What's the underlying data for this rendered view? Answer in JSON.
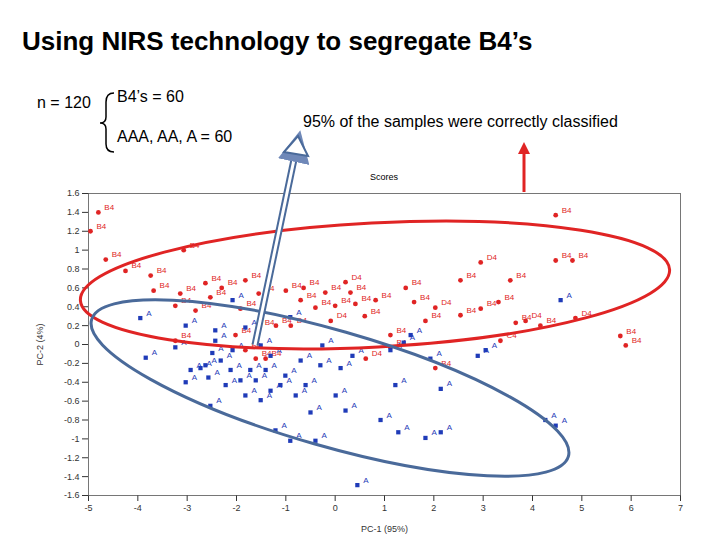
{
  "title": "Using NIRS technology to segregate B4’s",
  "annotations": {
    "n": "n = 120",
    "groups": [
      "B4’s = 60",
      "AAA, AA, A = 60"
    ],
    "result": "95% of the samples were correctly classified"
  },
  "chart_data": {
    "type": "scatter",
    "title": "Scores",
    "x_label": "PC-1 (95%)",
    "y_label": "PC-2 (4%)",
    "xlim": [
      -5,
      7
    ],
    "ylim": [
      -1.6,
      1.6
    ],
    "xticks": [
      -5,
      -4,
      -3,
      -2,
      -1,
      0,
      1,
      2,
      3,
      4,
      5,
      6,
      7
    ],
    "yticks": [
      -1.6,
      -1.4,
      -1.2,
      -1,
      -0.8,
      -0.6,
      -0.4,
      -0.2,
      0,
      0.2,
      0.4,
      0.6,
      0.8,
      1,
      1.2,
      1.4,
      1.6
    ],
    "grid": false,
    "series": [
      {
        "color": "#e02424",
        "marker": "circle",
        "x": [
          -4.8,
          -4.96,
          -4.65,
          -3.07,
          -4.25,
          -3.74,
          -3.68,
          -3.24,
          -2.83,
          -2.63,
          -2.53,
          -1.82,
          -1.92,
          -1.55,
          -1.0,
          -0.64,
          -0.7,
          -0.4,
          -1.2,
          -1.55,
          0.21,
          0.31,
          0.41,
          0.0,
          -0.09,
          0.82,
          1.43,
          1.83,
          1.12,
          2.03,
          2.54,
          2.95,
          2.54,
          2.95,
          3.31,
          3.55,
          3.66,
          3.86,
          4.16,
          3.35,
          4.47,
          4.47,
          4.81,
          4.87,
          5.78,
          5.89,
          0.62,
          2.03,
          -1.41,
          -1.61,
          -3.24,
          -2.02,
          1.12,
          -1.82,
          -3.14,
          -0.9,
          0.6,
          1.6,
          -2.3,
          -0.2
        ],
        "y": [
          1.4,
          1.2,
          0.9,
          1.0,
          0.78,
          0.73,
          0.57,
          0.41,
          0.36,
          0.65,
          0.5,
          0.68,
          0.38,
          0.54,
          0.57,
          0.6,
          0.47,
          0.39,
          0.2,
          0.18,
          0.66,
          0.55,
          0.43,
          0.41,
          0.25,
          0.47,
          0.6,
          0.25,
          0.1,
          0.39,
          0.68,
          0.87,
          0.31,
          0.38,
          0.45,
          0.68,
          0.23,
          0.25,
          0.2,
          0.04,
          1.37,
          0.89,
          0.89,
          0.28,
          0.09,
          -0.01,
          -0.15,
          -0.25,
          -0.15,
          -0.15,
          0.04,
          0.1,
          -0.03,
          -0.06,
          0.54,
          0.2,
          0.3,
          0.45,
          0.6,
          0.55
        ],
        "labels": [
          "B4",
          "B4",
          "B4",
          "B4",
          "B4",
          "B4",
          "B4",
          "B4",
          "B4",
          "B4",
          "B4",
          "B4",
          "B4",
          "B4",
          "B4",
          "B4",
          "B4",
          "B4",
          "B4",
          "B4",
          "D4",
          "B4",
          "B4",
          "B4",
          "D4",
          "B4",
          "B4",
          "B4",
          "B4",
          "D4",
          "B4",
          "D4",
          "B4",
          "B4",
          "B4",
          "B4",
          "B4",
          "D4",
          "B4",
          "C4",
          "B4",
          "B4",
          "B4",
          "D4",
          "B4",
          "B4",
          "D4",
          "B4",
          "B4",
          "B4",
          "B4",
          "B4",
          "B4",
          "B4",
          "B4",
          "D4",
          "B4",
          "B4",
          "B4",
          "B4"
        ]
      },
      {
        "color": "#1f3bb8",
        "marker": "square",
        "x": [
          -3.95,
          -3.84,
          -3.24,
          -2.93,
          -2.73,
          -2.57,
          -2.53,
          -3.03,
          -2.49,
          -2.43,
          -2.32,
          -2.22,
          -2.12,
          -2.08,
          -1.92,
          -1.82,
          -1.72,
          -1.61,
          -1.51,
          -1.41,
          -1.31,
          -1.21,
          -1.11,
          -1.01,
          -0.91,
          -0.8,
          -0.7,
          -0.6,
          -0.5,
          -0.4,
          -0.3,
          -0.26,
          0.01,
          0.11,
          0.21,
          0.35,
          0.45,
          0.92,
          1.12,
          1.28,
          1.39,
          1.83,
          1.93,
          2.14,
          2.89,
          3.05,
          4.57,
          4.26,
          4.47,
          -2.43,
          -2.08,
          -1.82,
          -1.51,
          -1.31,
          -3.03,
          -0.91,
          1.53,
          -2.63,
          1.22,
          2.14
        ],
        "y": [
          0.28,
          -0.14,
          -0.03,
          -0.27,
          -0.25,
          -0.35,
          -0.65,
          -0.4,
          -0.09,
          0.04,
          -0.17,
          -0.43,
          -0.27,
          -0.06,
          -0.38,
          -0.54,
          -0.27,
          -0.38,
          -0.59,
          -0.27,
          -0.49,
          -0.91,
          -0.43,
          -0.33,
          -1.02,
          -0.54,
          -0.17,
          -0.43,
          -0.72,
          -1.02,
          -0.22,
          -0.01,
          -0.54,
          -0.25,
          -0.7,
          -0.12,
          -1.49,
          -0.8,
          -0.06,
          -0.93,
          0.02,
          -0.99,
          -0.15,
          -0.93,
          -0.12,
          -0.06,
          0.47,
          -0.8,
          -0.86,
          0.15,
          0.47,
          0.18,
          -0.01,
          -0.12,
          0.2,
          0.29,
          0.1,
          -0.22,
          -0.43,
          -0.47
        ],
        "labels": [
          "A",
          "A",
          "A",
          "A",
          "A",
          "A",
          "A",
          "A",
          "A",
          "A",
          "A",
          "A",
          "A",
          "A",
          "A",
          "A",
          "A",
          "A",
          "A",
          "A",
          "A",
          "A",
          "A",
          "A",
          "A",
          "A",
          "A",
          "A",
          "A",
          "A",
          "A",
          "A",
          "A",
          "A",
          "A",
          "A",
          "A",
          "A",
          "A",
          "A",
          "A",
          "A",
          "A",
          "A",
          "A",
          "A",
          "A",
          "A",
          "A",
          "A",
          "A",
          "A",
          "A",
          "A",
          "A",
          "A",
          "A",
          "A",
          "A",
          "A"
        ]
      }
    ]
  }
}
